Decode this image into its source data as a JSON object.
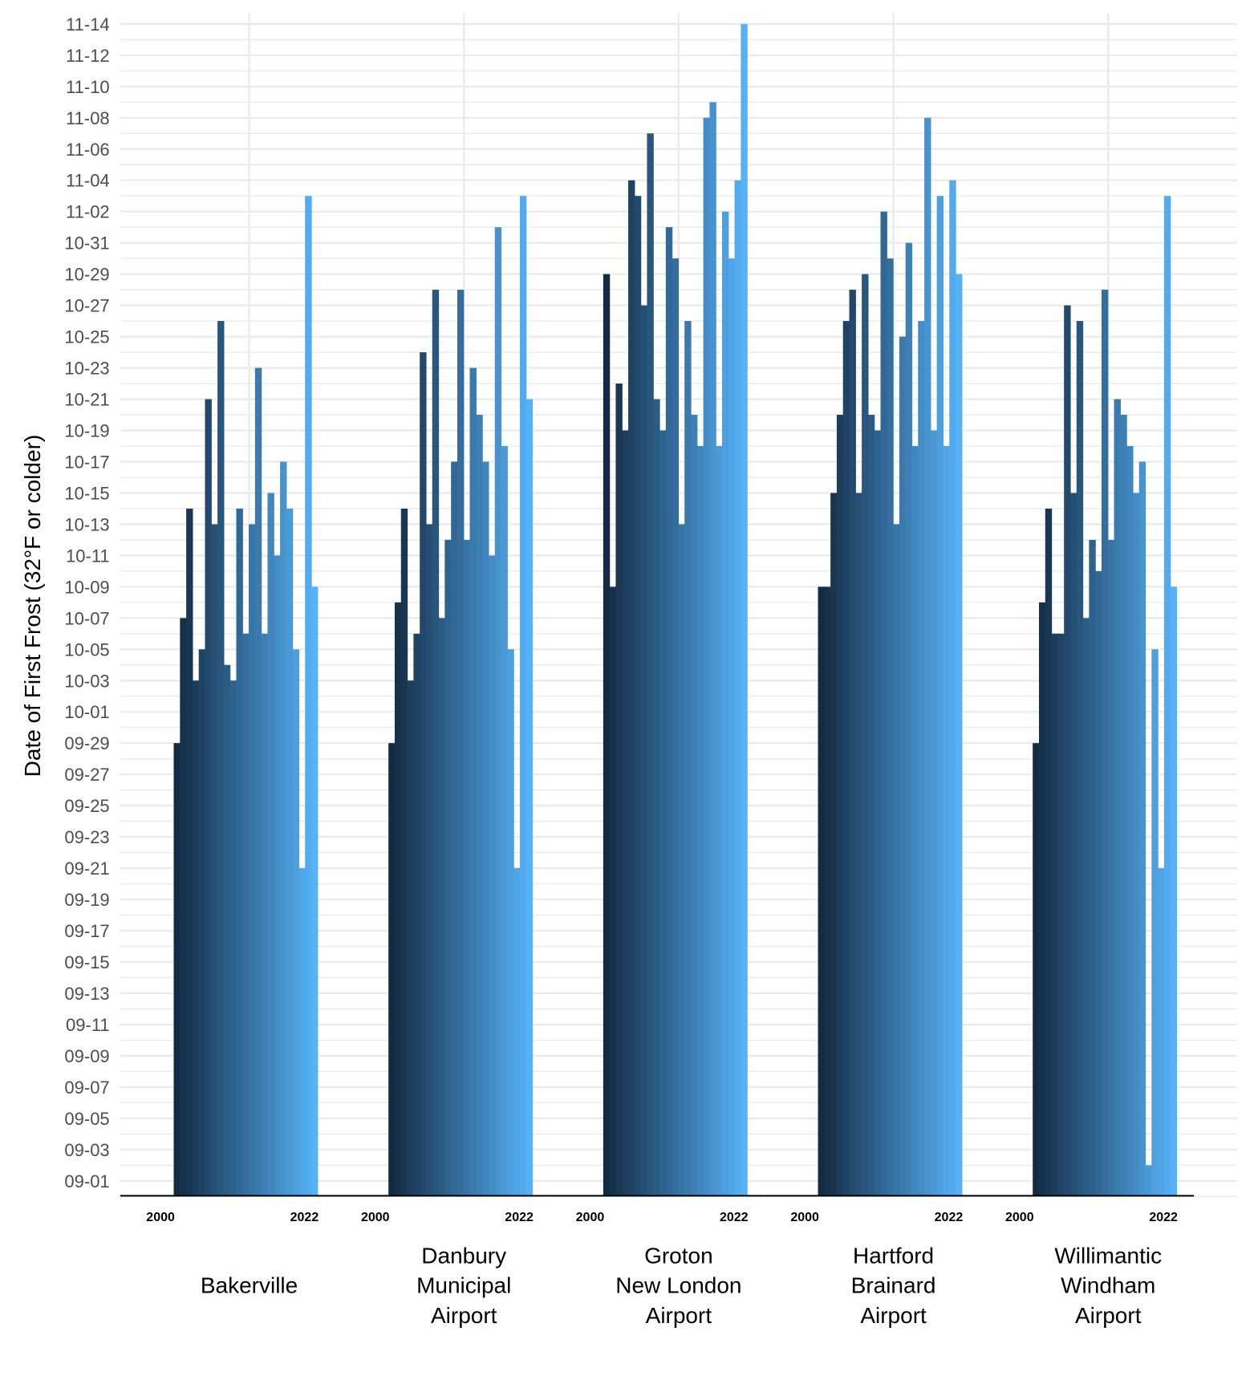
{
  "chart_data": {
    "type": "bar",
    "title": "",
    "xlabel": "",
    "ylabel": "Date of First Frost (32°F or colder)",
    "x_tick_labels": [
      "2000",
      "2022"
    ],
    "years": [
      2000,
      2001,
      2002,
      2003,
      2004,
      2005,
      2006,
      2007,
      2008,
      2009,
      2010,
      2011,
      2012,
      2013,
      2014,
      2015,
      2016,
      2017,
      2018,
      2019,
      2020,
      2021,
      2022
    ],
    "y_ticks": [
      "09-01",
      "09-03",
      "09-05",
      "09-07",
      "09-09",
      "09-11",
      "09-13",
      "09-15",
      "09-17",
      "09-19",
      "09-21",
      "09-23",
      "09-25",
      "09-27",
      "09-29",
      "10-01",
      "10-03",
      "10-05",
      "10-07",
      "10-09",
      "10-11",
      "10-13",
      "10-15",
      "10-17",
      "10-19",
      "10-21",
      "10-23",
      "10-25",
      "10-27",
      "10-29",
      "10-31",
      "11-02",
      "11-04",
      "11-06",
      "11-08",
      "11-10",
      "11-12",
      "11-14"
    ],
    "color_low": "#132b43",
    "color_high": "#56b1f7",
    "grid": true,
    "panels": [
      {
        "name": [
          "Bakerville"
        ],
        "values": [
          "09-29",
          "10-07",
          "10-14",
          "10-03",
          "10-05",
          "10-21",
          "10-13",
          "10-26",
          "10-04",
          "10-03",
          "10-14",
          "10-06",
          "10-13",
          "10-23",
          "10-06",
          "10-15",
          "10-11",
          "10-17",
          "10-14",
          "10-05",
          "09-21",
          "11-03",
          "10-09"
        ]
      },
      {
        "name": [
          "Danbury",
          "Municipal",
          "Airport"
        ],
        "values": [
          "09-29",
          "10-08",
          "10-14",
          "10-03",
          "10-06",
          "10-24",
          "10-13",
          "10-28",
          "10-07",
          "10-12",
          "10-17",
          "10-28",
          "10-12",
          "10-23",
          "10-20",
          "10-17",
          "10-11",
          "11-01",
          "10-18",
          "10-05",
          "09-21",
          "11-03",
          "10-21"
        ]
      },
      {
        "name": [
          "Groton",
          "New London",
          "Airport"
        ],
        "values": [
          "10-29",
          "10-09",
          "10-22",
          "10-19",
          "11-04",
          "11-03",
          "10-27",
          "11-07",
          "10-21",
          "10-19",
          "11-01",
          "10-30",
          "10-13",
          "10-26",
          "10-20",
          "10-18",
          "11-08",
          "11-09",
          "10-18",
          "11-02",
          "10-30",
          "11-04",
          "11-14"
        ]
      },
      {
        "name": [
          "Hartford",
          "Brainard",
          "Airport"
        ],
        "values": [
          "10-09",
          "10-09",
          "10-15",
          "10-20",
          "10-26",
          "10-28",
          "10-15",
          "10-29",
          "10-20",
          "10-19",
          "11-02",
          "10-30",
          "10-13",
          "10-25",
          "10-31",
          "10-18",
          "10-26",
          "11-08",
          "10-19",
          "11-03",
          "10-18",
          "11-04",
          "10-29"
        ]
      },
      {
        "name": [
          "Willimantic",
          "Windham",
          "Airport"
        ],
        "values": [
          "09-29",
          "10-08",
          "10-14",
          "10-06",
          "10-06",
          "10-27",
          "10-15",
          "10-26",
          "10-07",
          "10-12",
          "10-10",
          "10-28",
          "10-12",
          "10-21",
          "10-20",
          "10-18",
          "10-15",
          "10-17",
          "09-02",
          "10-05",
          "09-21",
          "11-03",
          "10-09"
        ]
      }
    ]
  }
}
